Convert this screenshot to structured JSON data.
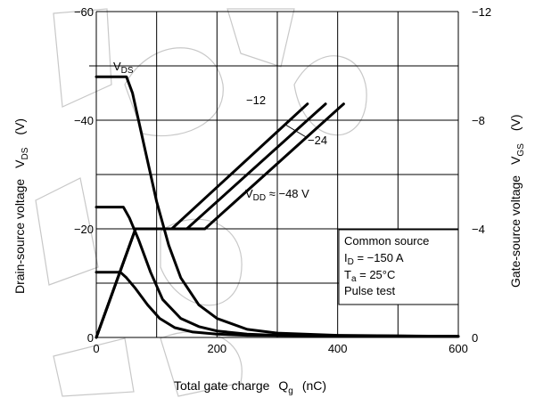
{
  "chart_data": {
    "type": "line",
    "title": "",
    "xlabel": {
      "main": "Total gate charge",
      "symbol": "Q",
      "sub": "g",
      "unit": "(nC)"
    },
    "ylabel_left": {
      "main": "Drain-source voltage",
      "symbol": "V",
      "sub": "DS",
      "unit": "(V)"
    },
    "ylabel_right": {
      "main": "Gate-source voltage",
      "symbol": "V",
      "sub": "GS",
      "unit": "(V)"
    },
    "xlim": [
      0,
      600
    ],
    "ylim_left": [
      0,
      -60
    ],
    "ylim_right": [
      0,
      -12
    ],
    "x_ticks": [
      {
        "value": 0,
        "label": "0"
      },
      {
        "value": 200,
        "label": "200"
      },
      {
        "value": 400,
        "label": "400"
      },
      {
        "value": 600,
        "label": "600"
      }
    ],
    "y_left_ticks": [
      {
        "value": 0,
        "label": "0"
      },
      {
        "value": -20,
        "label": "−20"
      },
      {
        "value": -40,
        "label": "−40"
      },
      {
        "value": -60,
        "label": "−60"
      }
    ],
    "y_right_ticks": [
      {
        "value": 0,
        "label": "0"
      },
      {
        "value": -4,
        "label": "−4"
      },
      {
        "value": -8,
        "label": "−8"
      },
      {
        "value": -12,
        "label": "−12"
      }
    ],
    "grid": true,
    "series": [
      {
        "axis": "left",
        "x": [
          0,
          50,
          60,
          80,
          100,
          120,
          140,
          170,
          200,
          250,
          300,
          400,
          600
        ],
        "y": [
          -48,
          -48,
          -45,
          -35,
          -25,
          -17,
          -11,
          -6,
          -3.5,
          -1.5,
          -0.8,
          -0.4,
          -0.2
        ]
      },
      {
        "axis": "left",
        "x": [
          0,
          45,
          55,
          70,
          90,
          110,
          140,
          170,
          200,
          250,
          300,
          600
        ],
        "y": [
          -24,
          -24,
          -22,
          -18,
          -12,
          -7,
          -3.5,
          -2,
          -1.2,
          -0.6,
          -0.4,
          -0.2
        ]
      },
      {
        "axis": "left",
        "x": [
          0,
          40,
          50,
          65,
          85,
          105,
          130,
          160,
          200,
          250,
          600
        ],
        "y": [
          -12,
          -12,
          -11,
          -9,
          -6,
          -3.5,
          -1.8,
          -1,
          -0.6,
          -0.4,
          -0.2
        ]
      },
      {
        "axis": "right",
        "x": [
          0,
          65,
          125,
          350
        ],
        "y": [
          0,
          -4,
          -4,
          -8.6
        ]
      },
      {
        "axis": "right",
        "x": [
          0,
          65,
          150,
          380
        ],
        "y": [
          0,
          -4,
          -4,
          -8.6
        ]
      },
      {
        "axis": "right",
        "x": [
          0,
          65,
          180,
          410
        ],
        "y": [
          0,
          -4,
          -4,
          -8.6
        ]
      }
    ],
    "annotations": {
      "vds": {
        "main": "V",
        "sub": "DS"
      },
      "minus12": "−12",
      "minus24": "−24",
      "vdd": {
        "main": "V",
        "sub": "DD",
        "rest": " ≈ −48 V"
      }
    },
    "legend_box": {
      "line1": "Common source",
      "line2_main": "I",
      "line2_sub": "D",
      "line2_rest": " = −150 A",
      "line3_main": "T",
      "line3_sub": "a",
      "line3_rest": " = 25°C",
      "line4": "Pulse test"
    }
  }
}
